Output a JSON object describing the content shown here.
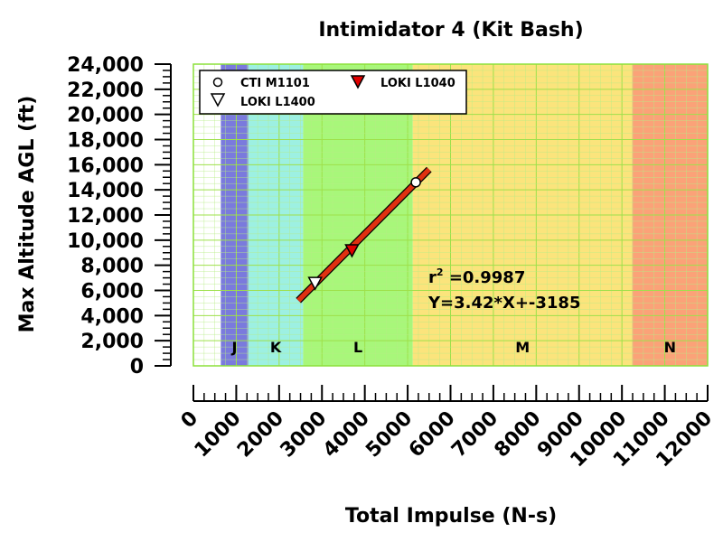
{
  "chart_data": {
    "type": "scatter",
    "title": "Intimidator 4 (Kit Bash)",
    "xlabel": "Total Impulse (N-s)",
    "ylabel": "Max Altitude AGL (ft)",
    "xlim": [
      0,
      12000
    ],
    "ylim": [
      0,
      24000
    ],
    "x_ticks": [
      0,
      1000,
      2000,
      3000,
      4000,
      5000,
      6000,
      7000,
      8000,
      9000,
      10000,
      11000,
      12000
    ],
    "y_ticks": [
      0,
      2000,
      4000,
      6000,
      8000,
      10000,
      12000,
      14000,
      16000,
      18000,
      20000,
      22000,
      24000
    ],
    "y_tick_labels": [
      "0",
      "2,000",
      "4,000",
      "6,000",
      "8,000",
      "10,000",
      "12,000",
      "14,000",
      "16,000",
      "18,000",
      "20,000",
      "22,000",
      "24,000"
    ],
    "grid": true,
    "legend_position": "top-left",
    "impulse_classes": [
      {
        "label": "",
        "x0": 0,
        "x1": 640,
        "color": "#ffffff"
      },
      {
        "label": "J",
        "x0": 640,
        "x1": 1280,
        "color": "#7a7add"
      },
      {
        "label": "K",
        "x0": 1280,
        "x1": 2560,
        "color": "#9df0e2"
      },
      {
        "label": "L",
        "x0": 2560,
        "x1": 5120,
        "color": "#a8f77a"
      },
      {
        "label": "M",
        "x0": 5120,
        "x1": 10240,
        "color": "#fbe47c"
      },
      {
        "label": "N",
        "x0": 10240,
        "x1": 12000,
        "color": "#fba278"
      }
    ],
    "series": [
      {
        "name": "CTI M1101",
        "marker": "circle",
        "color": "#ffffff",
        "points": [
          {
            "x": 5190,
            "y": 14600
          }
        ]
      },
      {
        "name": "LOKI L1400",
        "marker": "triangle-down",
        "color": "#ffffff",
        "points": [
          {
            "x": 2840,
            "y": 6600
          }
        ]
      },
      {
        "name": "LOKI L1040",
        "marker": "triangle-down",
        "color": "#e00000",
        "points": [
          {
            "x": 3700,
            "y": 9200
          }
        ]
      }
    ],
    "fit_line": {
      "x_range": [
        2450,
        5500
      ],
      "slope": 3.42,
      "intercept": -3185,
      "color": "#e03010"
    },
    "annotations": {
      "r_label": "r",
      "r_superscript": "2",
      "r_value": " =0.9987",
      "equation": "Y=3.42*X+-3185"
    }
  }
}
